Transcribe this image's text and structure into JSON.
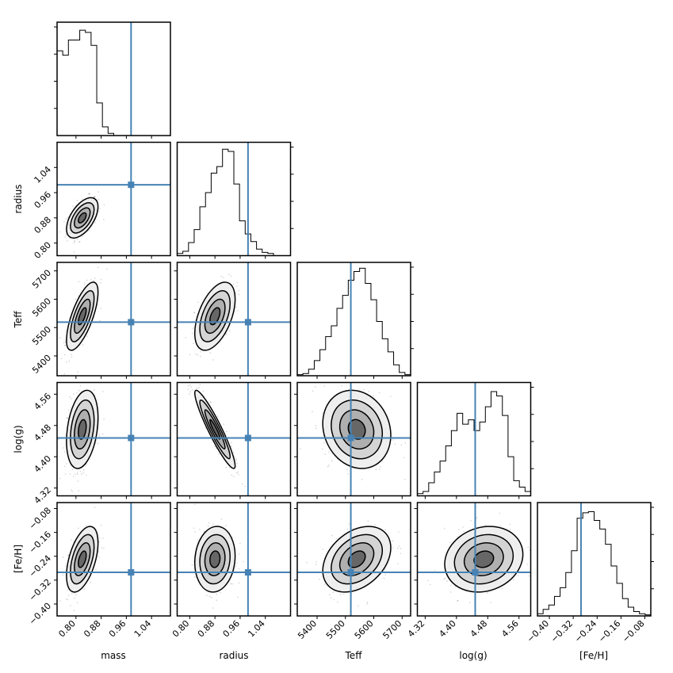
{
  "chart_data": {
    "type": "corner",
    "parameters": [
      "mass",
      "radius",
      "Teff",
      "log(g)",
      "[Fe/H]"
    ],
    "axis_labels": [
      "mass",
      "radius",
      "Teff",
      "log(g)",
      "[Fe/H]"
    ],
    "ranges": [
      [
        0.74,
        1.1
      ],
      [
        0.76,
        1.12
      ],
      [
        5330,
        5730
      ],
      [
        4.3,
        4.59
      ],
      [
        -0.44,
        -0.06
      ]
    ],
    "ticks": [
      {
        "values": [
          0.8,
          0.88,
          0.96,
          1.04
        ],
        "labels": [
          "0.80",
          "0.88",
          "0.96",
          "1.04"
        ]
      },
      {
        "values": [
          0.8,
          0.88,
          0.96,
          1.04
        ],
        "labels": [
          "0.80",
          "0.88",
          "0.96",
          "1.04"
        ]
      },
      {
        "values": [
          5400,
          5500,
          5600,
          5700
        ],
        "labels": [
          "5400",
          "5500",
          "5600",
          "5700"
        ]
      },
      {
        "values": [
          4.32,
          4.4,
          4.48,
          4.56
        ],
        "labels": [
          "4.32",
          "4.40",
          "4.48",
          "4.56"
        ]
      },
      {
        "values": [
          -0.4,
          -0.32,
          -0.24,
          -0.16,
          -0.08
        ],
        "labels": [
          "−0.40",
          "−0.32",
          "−0.24",
          "−0.16",
          "−0.08"
        ]
      }
    ],
    "truths": [
      0.975,
      0.985,
      5519,
      4.448,
      -0.294
    ],
    "truth_color": "#4682b4",
    "posterior": {
      "mean": [
        0.82,
        0.88,
        5540,
        4.47,
        -0.25
      ],
      "sd": [
        0.025,
        0.032,
        60,
        0.05,
        0.055
      ],
      "correlations": [
        [
          1.0,
          0.55,
          0.7,
          0.3,
          0.5
        ],
        [
          0.55,
          1.0,
          0.5,
          -0.93,
          0.1
        ],
        [
          0.7,
          0.5,
          1.0,
          -0.15,
          0.35
        ],
        [
          0.3,
          -0.93,
          -0.15,
          1.0,
          0.15
        ],
        [
          0.5,
          0.1,
          0.35,
          0.15,
          1.0
        ]
      ]
    },
    "histograms_1d": [
      {
        "parameter": "mass",
        "relative_counts": [
          0.78,
          0.74,
          0.88,
          0.88,
          0.97,
          0.95,
          0.83,
          0.3,
          0.08,
          0.02,
          0,
          0,
          0,
          0,
          0,
          0,
          0,
          0,
          0,
          0
        ]
      },
      {
        "parameter": "radius",
        "relative_counts": [
          0.02,
          0.04,
          0.12,
          0.24,
          0.45,
          0.58,
          0.76,
          0.82,
          0.98,
          0.96,
          0.66,
          0.32,
          0.2,
          0.13,
          0.06,
          0.03,
          0.02,
          0,
          0,
          0
        ]
      },
      {
        "parameter": "Teff",
        "relative_counts": [
          0.01,
          0.02,
          0.06,
          0.14,
          0.24,
          0.36,
          0.46,
          0.62,
          0.74,
          0.88,
          0.96,
          0.99,
          0.85,
          0.7,
          0.5,
          0.34,
          0.22,
          0.1,
          0.03,
          0.01
        ]
      },
      {
        "parameter": "log(g)",
        "relative_counts": [
          0.02,
          0.04,
          0.12,
          0.22,
          0.32,
          0.46,
          0.6,
          0.76,
          0.66,
          0.7,
          0.6,
          0.68,
          0.82,
          0.96,
          0.92,
          0.74,
          0.36,
          0.14,
          0.08,
          0.04
        ]
      },
      {
        "parameter": "[Fe/H]",
        "relative_counts": [
          0.02,
          0.06,
          0.1,
          0.18,
          0.26,
          0.4,
          0.6,
          0.9,
          0.95,
          0.96,
          0.88,
          0.8,
          0.66,
          0.46,
          0.3,
          0.16,
          0.08,
          0.04,
          0.02,
          0.01
        ]
      }
    ]
  }
}
